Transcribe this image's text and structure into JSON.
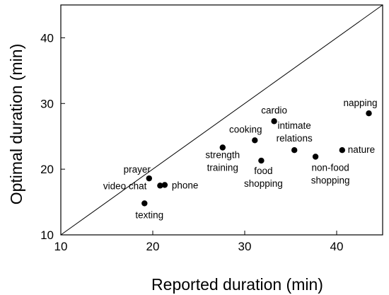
{
  "chart_data": {
    "type": "scatter",
    "title": "",
    "xlabel": "Reported duration (min)",
    "ylabel": "Optimal duration (min)",
    "xlim": [
      10,
      45
    ],
    "ylim": [
      10,
      45
    ],
    "xticks": [
      "10",
      "20",
      "30",
      "40"
    ],
    "yticks": [
      "10",
      "20",
      "30",
      "40"
    ],
    "reference_line": "y = x",
    "grid": false,
    "legend": "none",
    "marker_color": "#000000",
    "points": [
      {
        "label": [
          "napping"
        ],
        "x": 43.5,
        "y": 28.5
      },
      {
        "label": [
          "cardio"
        ],
        "x": 33.2,
        "y": 27.3
      },
      {
        "label": [
          "cooking"
        ],
        "x": 31.1,
        "y": 24.4
      },
      {
        "label": [
          "strength",
          "training"
        ],
        "x": 27.6,
        "y": 23.3
      },
      {
        "label": [
          "intimate",
          "relations"
        ],
        "x": 35.4,
        "y": 22.9
      },
      {
        "label": [
          "nature"
        ],
        "x": 40.6,
        "y": 22.9
      },
      {
        "label": [
          "non-food",
          "shopping"
        ],
        "x": 37.7,
        "y": 21.9
      },
      {
        "label": [
          "food",
          "shopping"
        ],
        "x": 31.8,
        "y": 21.3
      },
      {
        "label": [
          "prayer"
        ],
        "x": 19.6,
        "y": 18.6
      },
      {
        "label": [
          "video chat"
        ],
        "x": 20.8,
        "y": 17.5
      },
      {
        "label": [
          "phone"
        ],
        "x": 21.3,
        "y": 17.6
      },
      {
        "label": [
          "texting"
        ],
        "x": 19.1,
        "y": 14.8
      }
    ]
  }
}
